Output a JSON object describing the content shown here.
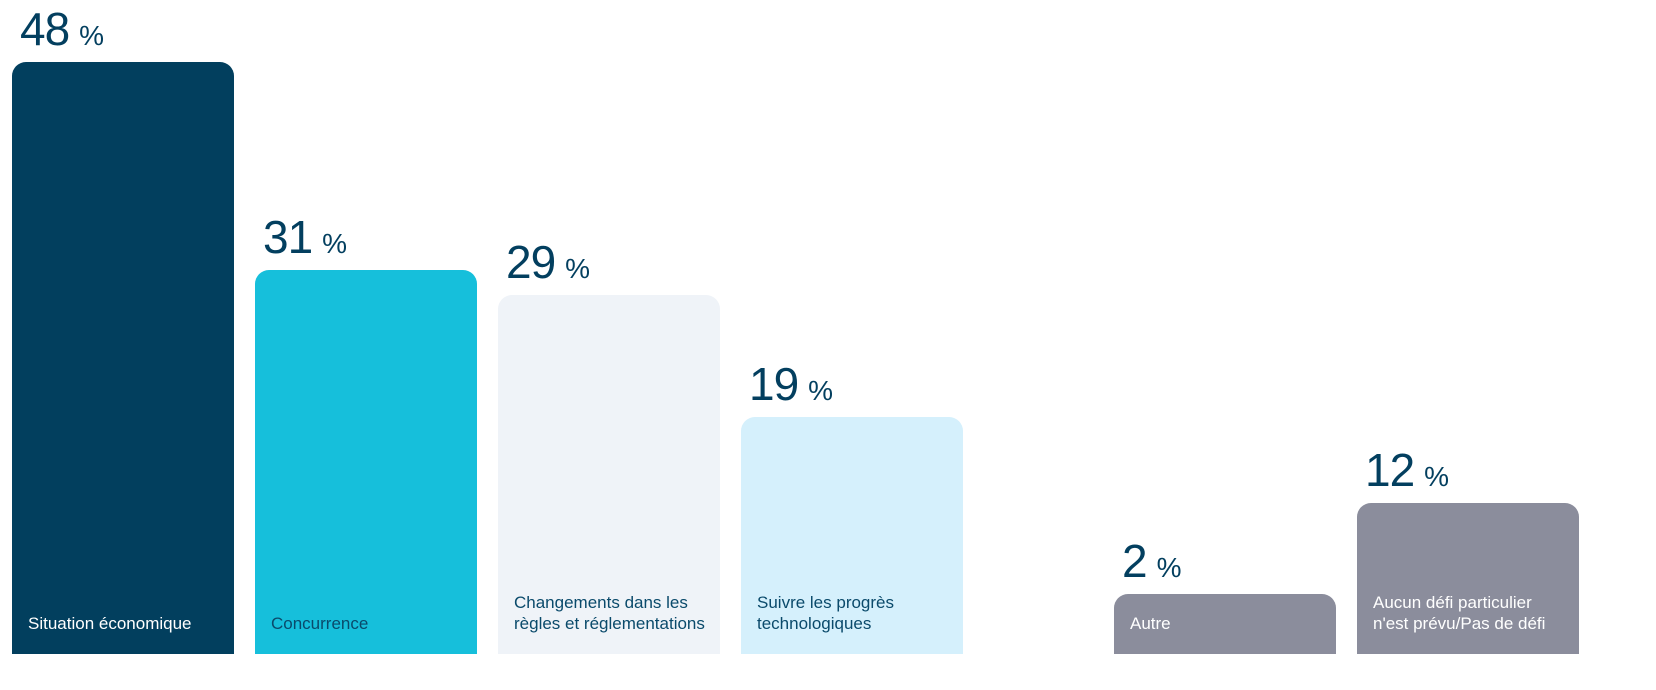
{
  "chart_data": {
    "type": "bar",
    "unit": "%",
    "categories": [
      "Situation économique",
      "Concurrence",
      "Changements dans les règles et réglementations",
      "Suivre les progrès technologiques",
      "Autre",
      "Aucun défi particulier n'est prévu/Pas de défi"
    ],
    "values": [
      48,
      31,
      29,
      19,
      2,
      12
    ],
    "colors": [
      "#023f5e",
      "#16bfdb",
      "#eff3f8",
      "#d5f0fc",
      "#8b8d9c",
      "#8b8d9c"
    ],
    "ylim": [
      0,
      48
    ]
  }
}
